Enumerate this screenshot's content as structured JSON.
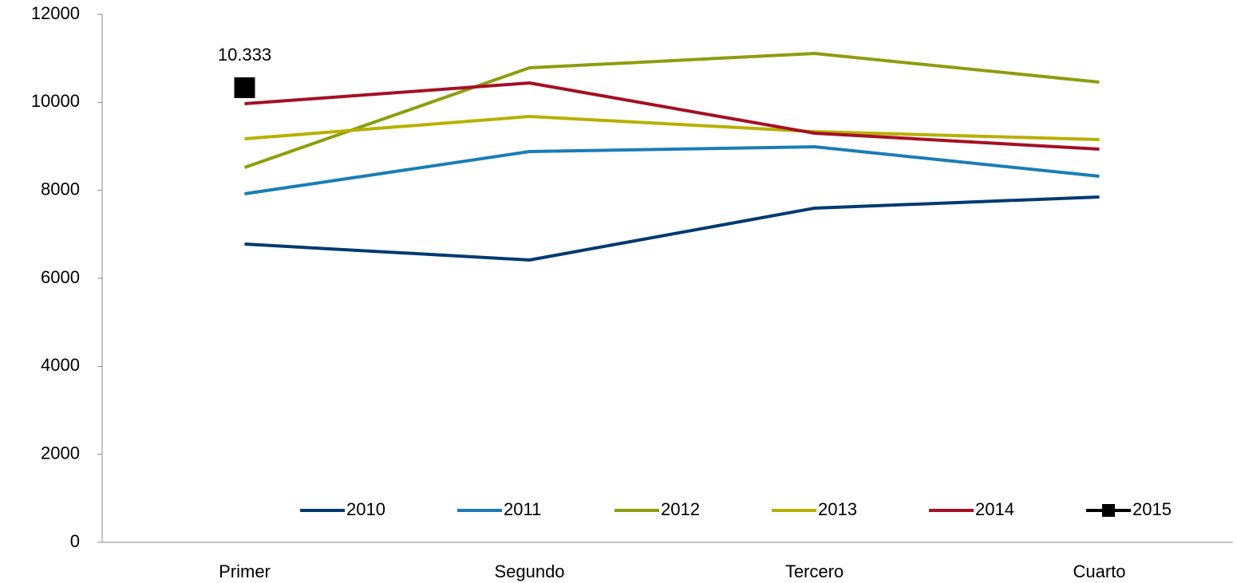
{
  "chart_data": {
    "type": "line",
    "categories": [
      "Primer",
      "Segundo",
      "Tercero",
      "Cuarto"
    ],
    "series": [
      {
        "name": "2010",
        "color": "#003a70",
        "values": [
          6779,
          6417,
          7595,
          7849
        ]
      },
      {
        "name": "2011",
        "color": "#1a7db5",
        "values": [
          7921,
          8882,
          8990,
          8320
        ]
      },
      {
        "name": "2012",
        "color": "#8c9e0e",
        "values": [
          8519,
          10785,
          11111,
          10459
        ]
      },
      {
        "name": "2013",
        "color": "#b8b000",
        "values": [
          9172,
          9679,
          9335,
          9154
        ]
      },
      {
        "name": "2014",
        "color": "#a50f23",
        "values": [
          9969,
          10441,
          9299,
          8936
        ]
      },
      {
        "name": "2015",
        "color": "#000000",
        "marker": "square",
        "values": [
          10333,
          null,
          null,
          null
        ],
        "value_labels": [
          "10.333",
          null,
          null,
          null
        ]
      }
    ],
    "ylim": [
      0,
      12000
    ],
    "yticks": [
      0,
      2000,
      4000,
      6000,
      8000,
      10000,
      12000
    ],
    "grid": false,
    "legend": "bottom"
  }
}
